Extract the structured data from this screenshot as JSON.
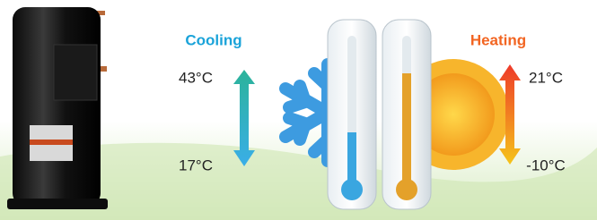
{
  "cooling": {
    "title": "Cooling",
    "high": "43°C",
    "low": "17°C"
  },
  "heating": {
    "title": "Heating",
    "high": "21°C",
    "low": "-10°C"
  }
}
